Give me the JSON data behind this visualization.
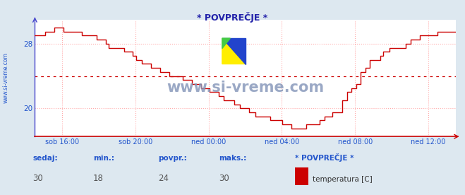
{
  "title": "* POVPREČJE *",
  "bg_color": "#dde8f0",
  "plot_bg_color": "#ffffff",
  "line_color": "#cc0000",
  "grid_color": "#ffaaaa",
  "grid_linestyle": "dotted",
  "left_spine_color": "#4444cc",
  "bottom_spine_color": "#cc0000",
  "avg_value": 24.0,
  "avg_line_color": "#cc0000",
  "y_min": 16.5,
  "y_max": 31.0,
  "y_ticks": [
    20,
    28
  ],
  "x_tick_hours": [
    1.5,
    5.5,
    9.5,
    13.5,
    17.5,
    21.5
  ],
  "x_labels": [
    "sob 16:00",
    "sob 20:00",
    "ned 00:00",
    "ned 04:00",
    "ned 08:00",
    "ned 12:00"
  ],
  "x_min": 0.0,
  "x_max": 23.0,
  "footer_labels": [
    "sedaj:",
    "min.:",
    "povpr.:",
    "maks.:"
  ],
  "footer_values": [
    "30",
    "18",
    "24",
    "30"
  ],
  "legend_title": "* POVPREČJE *",
  "legend_item": "temperatura [C]",
  "legend_color": "#cc0000",
  "watermark": "www.si-vreme.com",
  "side_text": "www.si-vreme.com",
  "title_color": "#2222aa",
  "text_color": "#2255cc",
  "footer_value_color": "#555555",
  "watermark_color": "#8899bb",
  "logo_yellow": "#ffee00",
  "logo_blue": "#2244cc",
  "logo_green": "#44cc44"
}
